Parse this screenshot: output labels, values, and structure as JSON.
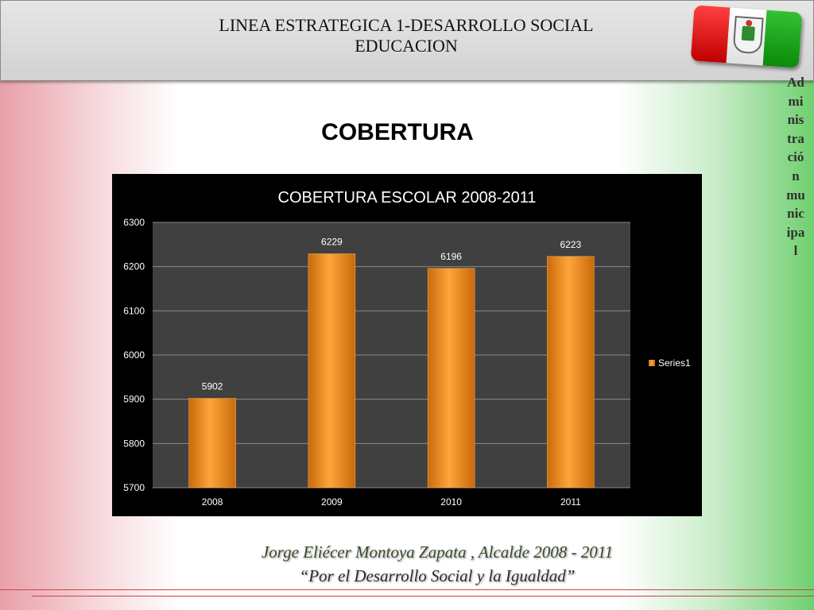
{
  "header": {
    "line1": "LINEA ESTRATEGICA 1-DESARROLLO SOCIAL",
    "line2": "EDUCACION",
    "flag_icon": "municipal-flag-with-seal"
  },
  "section_title": "COBERTURA",
  "side_text": "Administración municipal",
  "footer": {
    "line1": "Jorge Eliécer Montoya Zapata , Alcalde  2008 - 2011",
    "line2": "“Por el Desarrollo Social  y la Igualdad”"
  },
  "colors": {
    "bar": "#f28c1a",
    "plot_bg": "#404040",
    "chart_bg": "#000000",
    "flag_red": "#d81e1e",
    "flag_green": "#1a9a1a"
  },
  "chart_data": {
    "type": "bar",
    "title": "COBERTURA ESCOLAR 2008-2011",
    "categories": [
      "2008",
      "2009",
      "2010",
      "2011"
    ],
    "series": [
      {
        "name": "Series1",
        "values": [
          5902,
          6229,
          6196,
          6223
        ]
      }
    ],
    "ylim": [
      5700,
      6300
    ],
    "yticks": [
      5700,
      5800,
      5900,
      6000,
      6100,
      6200,
      6300
    ],
    "data_labels": true,
    "grid": true,
    "legend": "right",
    "xlabel": "",
    "ylabel": ""
  }
}
